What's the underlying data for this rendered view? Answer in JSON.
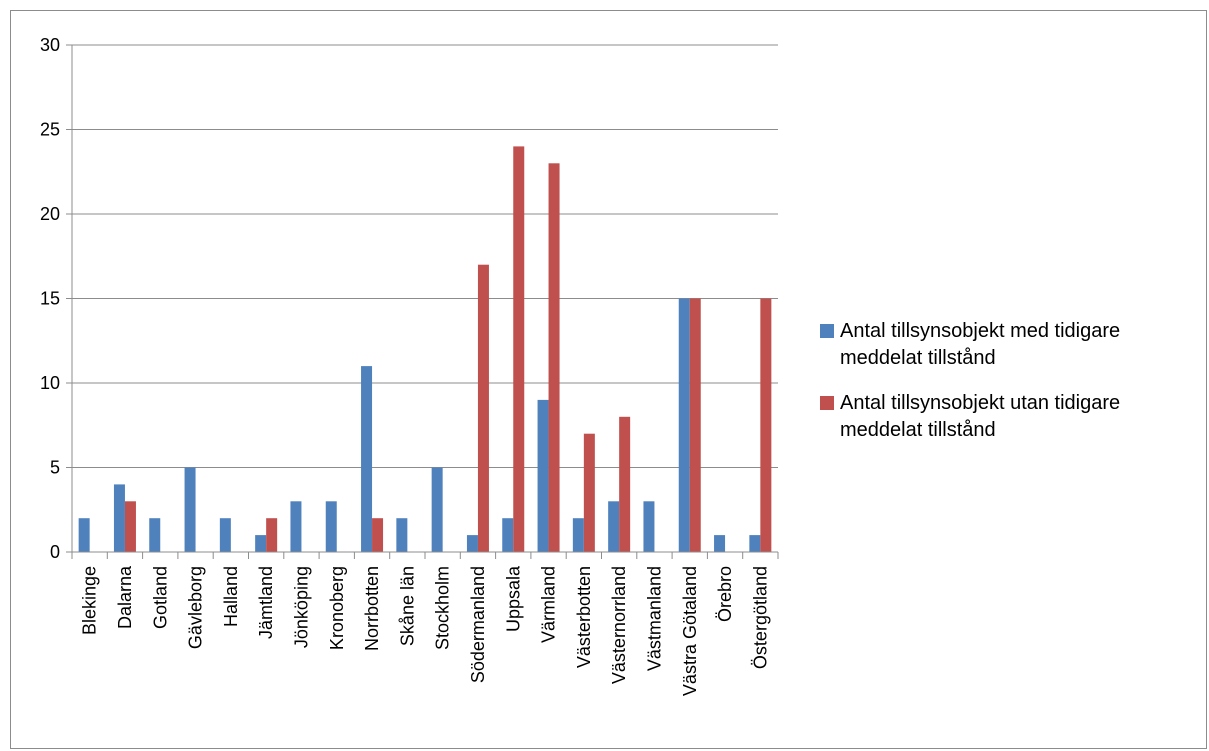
{
  "chart_data": {
    "type": "bar",
    "categories": [
      "Blekinge",
      "Dalarna",
      "Gotland",
      "Gävleborg",
      "Halland",
      "Jämtland",
      "Jönköping",
      "Kronoberg",
      "Norrbotten",
      "Skåne län",
      "Stockholm",
      "Södermanland",
      "Uppsala",
      "Värmland",
      "Västerbotten",
      "Västernorrland",
      "Västmanland",
      "Västra Götaland",
      "Örebro",
      "Östergötland"
    ],
    "series": [
      {
        "name": "Antal tillsynsobjekt med tidigare meddelat tillstånd",
        "color": "#4f81bd",
        "values": [
          2,
          4,
          2,
          5,
          2,
          1,
          3,
          3,
          11,
          2,
          5,
          1,
          2,
          9,
          2,
          3,
          3,
          15,
          1,
          1
        ]
      },
      {
        "name": "Antal tillsynsobjekt utan tidigare meddelat tillstånd",
        "color": "#c0504d",
        "values": [
          0,
          3,
          0,
          0,
          0,
          2,
          0,
          0,
          2,
          0,
          0,
          17,
          24,
          23,
          7,
          8,
          0,
          15,
          0,
          15
        ]
      }
    ],
    "yticks": [
      0,
      5,
      10,
      15,
      20,
      25,
      30
    ],
    "ylim": [
      0,
      30
    ],
    "grid": true,
    "legend_position": "right"
  }
}
